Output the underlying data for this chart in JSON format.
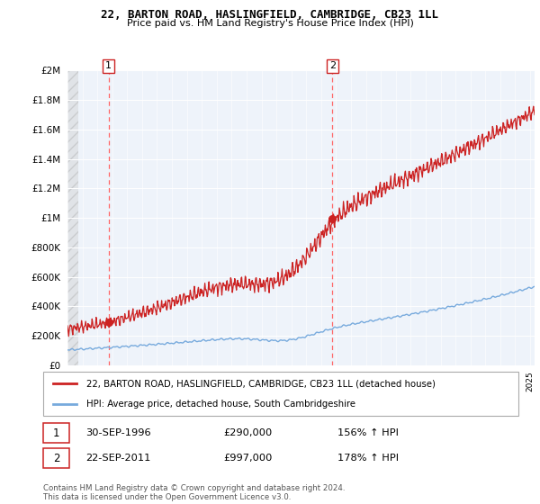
{
  "title": "22, BARTON ROAD, HASLINGFIELD, CAMBRIDGE, CB23 1LL",
  "subtitle": "Price paid vs. HM Land Registry's House Price Index (HPI)",
  "legend_line1": "22, BARTON ROAD, HASLINGFIELD, CAMBRIDGE, CB23 1LL (detached house)",
  "legend_line2": "HPI: Average price, detached house, South Cambridgeshire",
  "sale1_date": "30-SEP-1996",
  "sale1_price": 290000,
  "sale1_label": "156% ↑ HPI",
  "sale2_date": "22-SEP-2011",
  "sale2_price": 997000,
  "sale2_label": "178% ↑ HPI",
  "footer": "Contains HM Land Registry data © Crown copyright and database right 2024.\nThis data is licensed under the Open Government Licence v3.0.",
  "house_color": "#cc2222",
  "hpi_color": "#77aadd",
  "bg_color": "#eef3fa",
  "ylim": [
    0,
    2000000
  ],
  "xlim_start": 1994.0,
  "xlim_end": 2025.3,
  "sale1_year": 1996.75,
  "sale2_year": 2011.75
}
